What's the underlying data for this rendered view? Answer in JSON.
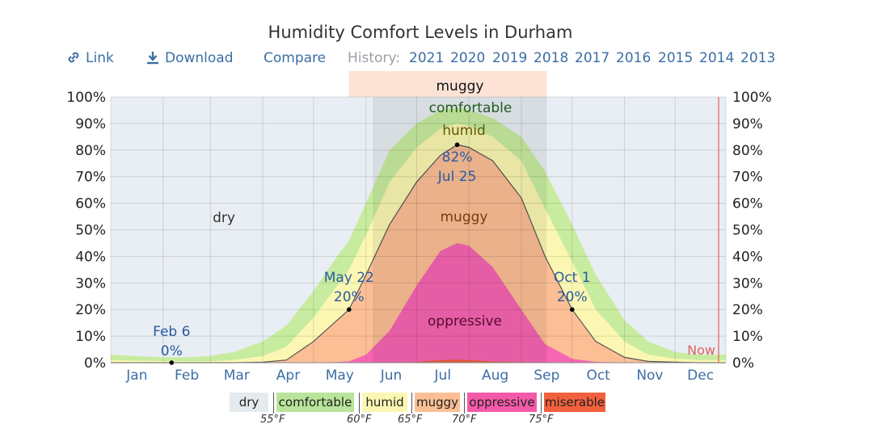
{
  "title": "Humidity Comfort Levels in Durham",
  "toolbar": {
    "link_label": "Link",
    "download_label": "Download",
    "compare_label": "Compare",
    "history_label": "History:",
    "years": [
      "2021",
      "2020",
      "2019",
      "2018",
      "2017",
      "2016",
      "2015",
      "2014",
      "2013"
    ]
  },
  "chart_data": {
    "type": "area",
    "title": "Humidity Comfort Levels in Durham",
    "ylim": [
      0,
      100
    ],
    "y_tick_labels": [
      "0%",
      "10%",
      "20%",
      "30%",
      "40%",
      "50%",
      "60%",
      "70%",
      "80%",
      "90%",
      "100%"
    ],
    "x_tick_labels": [
      "Jan",
      "Feb",
      "Mar",
      "Apr",
      "May",
      "Jun",
      "Jul",
      "Aug",
      "Sep",
      "Oct",
      "Nov",
      "Dec"
    ],
    "grid": true,
    "x_day_of_year": [
      1,
      15,
      32,
      46,
      60,
      74,
      91,
      105,
      121,
      135,
      142,
      152,
      166,
      182,
      196,
      206,
      213,
      227,
      244,
      258,
      274,
      288,
      305,
      319,
      335,
      349,
      365
    ],
    "series": [
      {
        "name": "miserable",
        "values": [
          0,
          0,
          0,
          0,
          0,
          0,
          0,
          0,
          0,
          0,
          0,
          0,
          0,
          0.3,
          1,
          1.2,
          1,
          0.5,
          0.2,
          0,
          0,
          0,
          0,
          0,
          0,
          0,
          0
        ]
      },
      {
        "name": "oppressive",
        "values": [
          0,
          0,
          0,
          0,
          0,
          0,
          0,
          0,
          0,
          0.2,
          0.5,
          3,
          12,
          29,
          42,
          45,
          44,
          36,
          20,
          7,
          1.5,
          0.3,
          0,
          0,
          0,
          0,
          0
        ]
      },
      {
        "name": "muggy",
        "values": [
          0,
          0,
          0,
          0,
          0,
          0,
          0.2,
          1,
          8,
          16,
          20,
          33,
          52,
          68,
          78,
          82,
          81,
          76,
          62,
          40,
          20,
          8,
          2,
          0.5,
          0.2,
          0,
          0
        ]
      },
      {
        "name": "humid",
        "values": [
          1,
          0.8,
          0.6,
          0.5,
          0.5,
          1,
          2.5,
          6,
          17,
          29,
          35,
          48,
          68,
          81,
          88,
          90,
          89,
          85,
          76,
          58,
          38,
          20,
          8,
          3,
          1.5,
          1,
          1
        ]
      },
      {
        "name": "comfortable",
        "values": [
          3,
          2.5,
          2,
          2,
          2.5,
          4,
          8,
          14,
          27,
          40,
          46,
          60,
          80,
          90,
          95,
          96,
          95,
          92,
          85,
          72,
          52,
          33,
          16,
          8,
          4,
          3,
          3
        ]
      }
    ],
    "band_labels": [
      "dry",
      "comfortable",
      "humid",
      "muggy",
      "oppressive"
    ],
    "header_band_label": "muggy",
    "annotations": [
      {
        "date": "Feb 6",
        "value": "0%",
        "x_day": 37,
        "y": 0
      },
      {
        "date": "May 22",
        "value": "20%",
        "x_day": 142,
        "y": 20
      },
      {
        "date": "Jul 25",
        "value": "82%",
        "x_day": 206,
        "y": 82
      },
      {
        "date": "Oct 1",
        "value": "20%",
        "x_day": 274,
        "y": 20
      }
    ],
    "now_label": "Now",
    "summer_shading_days": [
      156,
      259
    ],
    "header_band_days": [
      142,
      259
    ]
  },
  "legend": {
    "items": [
      {
        "label": "dry",
        "color": "#e4eaee"
      },
      {
        "label": "comfortable",
        "color": "#b9e59b"
      },
      {
        "label": "humid",
        "color": "#fbf7b2"
      },
      {
        "label": "muggy",
        "color": "#fcbf95"
      },
      {
        "label": "oppressive",
        "color": "#f55aa9"
      },
      {
        "label": "miserable",
        "color": "#f2603e"
      }
    ],
    "temps": [
      "55°F",
      "60°F",
      "65°F",
      "70°F",
      "75°F"
    ]
  },
  "colors": {
    "dry": "#e8eef3",
    "comfortable": "#c8ec9f",
    "humid": "#fbf7b2",
    "muggy": "#fcbf95",
    "oppressive": "#f766b2",
    "miserable": "#f2603e",
    "link": "#3b6ea5",
    "now": "#e06060"
  }
}
